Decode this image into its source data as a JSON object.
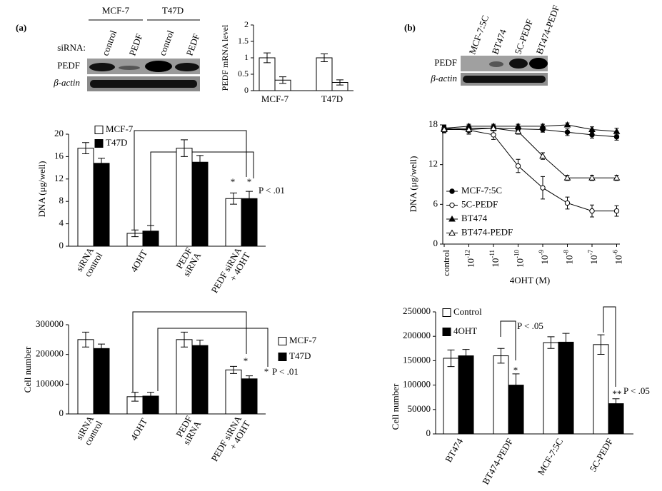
{
  "panel_labels": [
    "(a)",
    "(b)"
  ],
  "blot_a": {
    "cell_lines": [
      "MCF-7",
      "T47D"
    ],
    "row_label": "siRNA:",
    "lanes": [
      "control",
      "PEDF",
      "control",
      "PEDF"
    ],
    "bands": [
      "PEDF",
      "β-actin"
    ]
  },
  "blot_b": {
    "lanes": [
      "MCF-7:5C",
      "BT474",
      "5C-PEDF",
      "BT474-PEDF"
    ],
    "bands": [
      "PEDF",
      "β-actin"
    ]
  },
  "chart_data": [
    {
      "type": "bar",
      "ylabel": "PEDF mRNA level",
      "categories": [
        [
          "MCF-7"
        ],
        [
          "T47D"
        ]
      ],
      "series": [
        {
          "color": "#ffffff",
          "values": [
            1.0,
            1.0
          ],
          "errors": [
            0.15,
            0.12
          ]
        },
        {
          "color": "#ffffff",
          "values": [
            0.32,
            0.25
          ],
          "errors": [
            0.1,
            0.08
          ]
        }
      ],
      "ylim": [
        0,
        2
      ],
      "yticks": [
        0,
        0.5,
        1,
        1.5,
        2
      ]
    },
    {
      "type": "bar",
      "ylabel": "DNA (μg/well)",
      "categories": [
        [
          "siRNA",
          "control"
        ],
        [
          "4OHT"
        ],
        [
          "PEDF",
          "siRNA"
        ],
        [
          "PEDF siRNA",
          "+ 4OHT"
        ]
      ],
      "series": [
        {
          "name": "MCF-7",
          "color": "#ffffff",
          "values": [
            17.5,
            2.3,
            17.5,
            8.5
          ],
          "errors": [
            1.0,
            0.6,
            1.5,
            1.0
          ]
        },
        {
          "name": "T47D",
          "color": "#000000",
          "values": [
            14.8,
            2.7,
            15.0,
            8.5
          ],
          "errors": [
            0.9,
            1.0,
            1.2,
            1.3
          ]
        }
      ],
      "ylim": [
        0,
        20
      ],
      "yticks": [
        0,
        4,
        8,
        12,
        16,
        20
      ],
      "annotations": [
        "*",
        "*",
        "P < .01"
      ]
    },
    {
      "type": "bar",
      "ylabel": "Cell number",
      "categories": [
        [
          "siRNA",
          "control"
        ],
        [
          "4OHT"
        ],
        [
          "PEDF",
          "siRNA"
        ],
        [
          "PEDF siRNA",
          "+ 4OHT"
        ]
      ],
      "series": [
        {
          "name": "MCF-7",
          "color": "#ffffff",
          "values": [
            250000,
            58000,
            250000,
            148000
          ],
          "errors": [
            25000,
            15000,
            25000,
            12000
          ]
        },
        {
          "name": "T47D",
          "color": "#000000",
          "values": [
            220000,
            60000,
            230000,
            118000
          ],
          "errors": [
            15000,
            13000,
            18000,
            10000
          ]
        }
      ],
      "ylim": [
        0,
        300000
      ],
      "yticks": [
        0,
        100000,
        200000,
        300000
      ],
      "annotations": [
        "*",
        "*",
        "P < .01"
      ]
    },
    {
      "type": "line",
      "ylabel": "DNA (μg/well)",
      "xlabel": "4OHT (M)",
      "categories": [
        "control",
        {
          "base": "10",
          "exponent": "-12"
        },
        {
          "base": "10",
          "exponent": "-11"
        },
        {
          "base": "10",
          "exponent": "-10"
        },
        {
          "base": "10",
          "exponent": "-9"
        },
        {
          "base": "10",
          "exponent": "-8"
        },
        {
          "base": "10",
          "exponent": "-7"
        },
        {
          "base": "10",
          "exponent": "-6"
        }
      ],
      "series": [
        {
          "name": "MCF-7:5C",
          "color": "#000000",
          "marker": "circle",
          "filled": true,
          "values": [
            17.3,
            17.5,
            17.5,
            17.4,
            17.3,
            16.9,
            16.5,
            16.2
          ],
          "errors": [
            0.5,
            0.4,
            0.4,
            0.4,
            0.4,
            0.5,
            0.5,
            0.5
          ]
        },
        {
          "name": "5C-PEDF",
          "color": "#000000",
          "marker": "circle",
          "filled": false,
          "values": [
            17.5,
            17.2,
            16.5,
            11.8,
            8.5,
            6.2,
            5.0,
            5.0
          ],
          "errors": [
            0.5,
            0.6,
            0.7,
            1.0,
            1.7,
            0.9,
            0.9,
            0.8
          ]
        },
        {
          "name": "BT474",
          "color": "#000000",
          "marker": "triangle",
          "filled": true,
          "values": [
            17.5,
            17.8,
            17.8,
            17.8,
            17.8,
            18.0,
            17.3,
            17.0
          ],
          "errors": [
            0.4,
            0.3,
            0.3,
            0.3,
            0.3,
            0.3,
            0.4,
            0.5
          ]
        },
        {
          "name": "BT474-PEDF",
          "color": "#000000",
          "marker": "triangle",
          "filled": false,
          "values": [
            17.3,
            17.3,
            17.5,
            17.0,
            13.3,
            10.0,
            10.0,
            10.0
          ],
          "errors": [
            0.4,
            0.5,
            0.4,
            0.4,
            0.5,
            0.4,
            0.4,
            0.4
          ]
        }
      ],
      "ylim": [
        0,
        18
      ],
      "yticks": [
        0,
        6,
        12,
        18
      ]
    },
    {
      "type": "bar",
      "ylabel": "Cell number",
      "categories": [
        [
          "BT474"
        ],
        [
          "BT474-PEDF"
        ],
        [
          "MCF-7:5C"
        ],
        [
          "5C-PEDF"
        ]
      ],
      "series": [
        {
          "name": "Control",
          "color": "#ffffff",
          "values": [
            155000,
            160000,
            187000,
            183000
          ],
          "errors": [
            17000,
            15000,
            12000,
            20000
          ]
        },
        {
          "name": "4OHT",
          "color": "#000000",
          "values": [
            160000,
            100000,
            188000,
            62000
          ],
          "errors": [
            13000,
            23000,
            18000,
            10000
          ]
        }
      ],
      "ylim": [
        0,
        250000
      ],
      "yticks": [
        0,
        50000,
        100000,
        150000,
        200000,
        250000
      ],
      "annotations": [
        "P < .05",
        "*",
        "**",
        "P < .05"
      ]
    }
  ]
}
